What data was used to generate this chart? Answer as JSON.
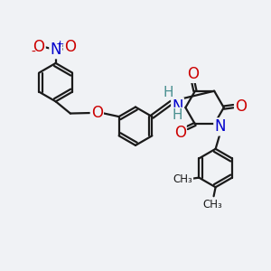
{
  "bg_color": "#f0f2f5",
  "bond_color": "#1a1a1a",
  "bond_width": 1.6,
  "atom_colors": {
    "O": "#cc0000",
    "N": "#0000cc",
    "H": "#4a9090",
    "C": "#1a1a1a"
  },
  "font_size_atom": 11,
  "figsize": [
    3.0,
    3.0
  ],
  "dpi": 100
}
